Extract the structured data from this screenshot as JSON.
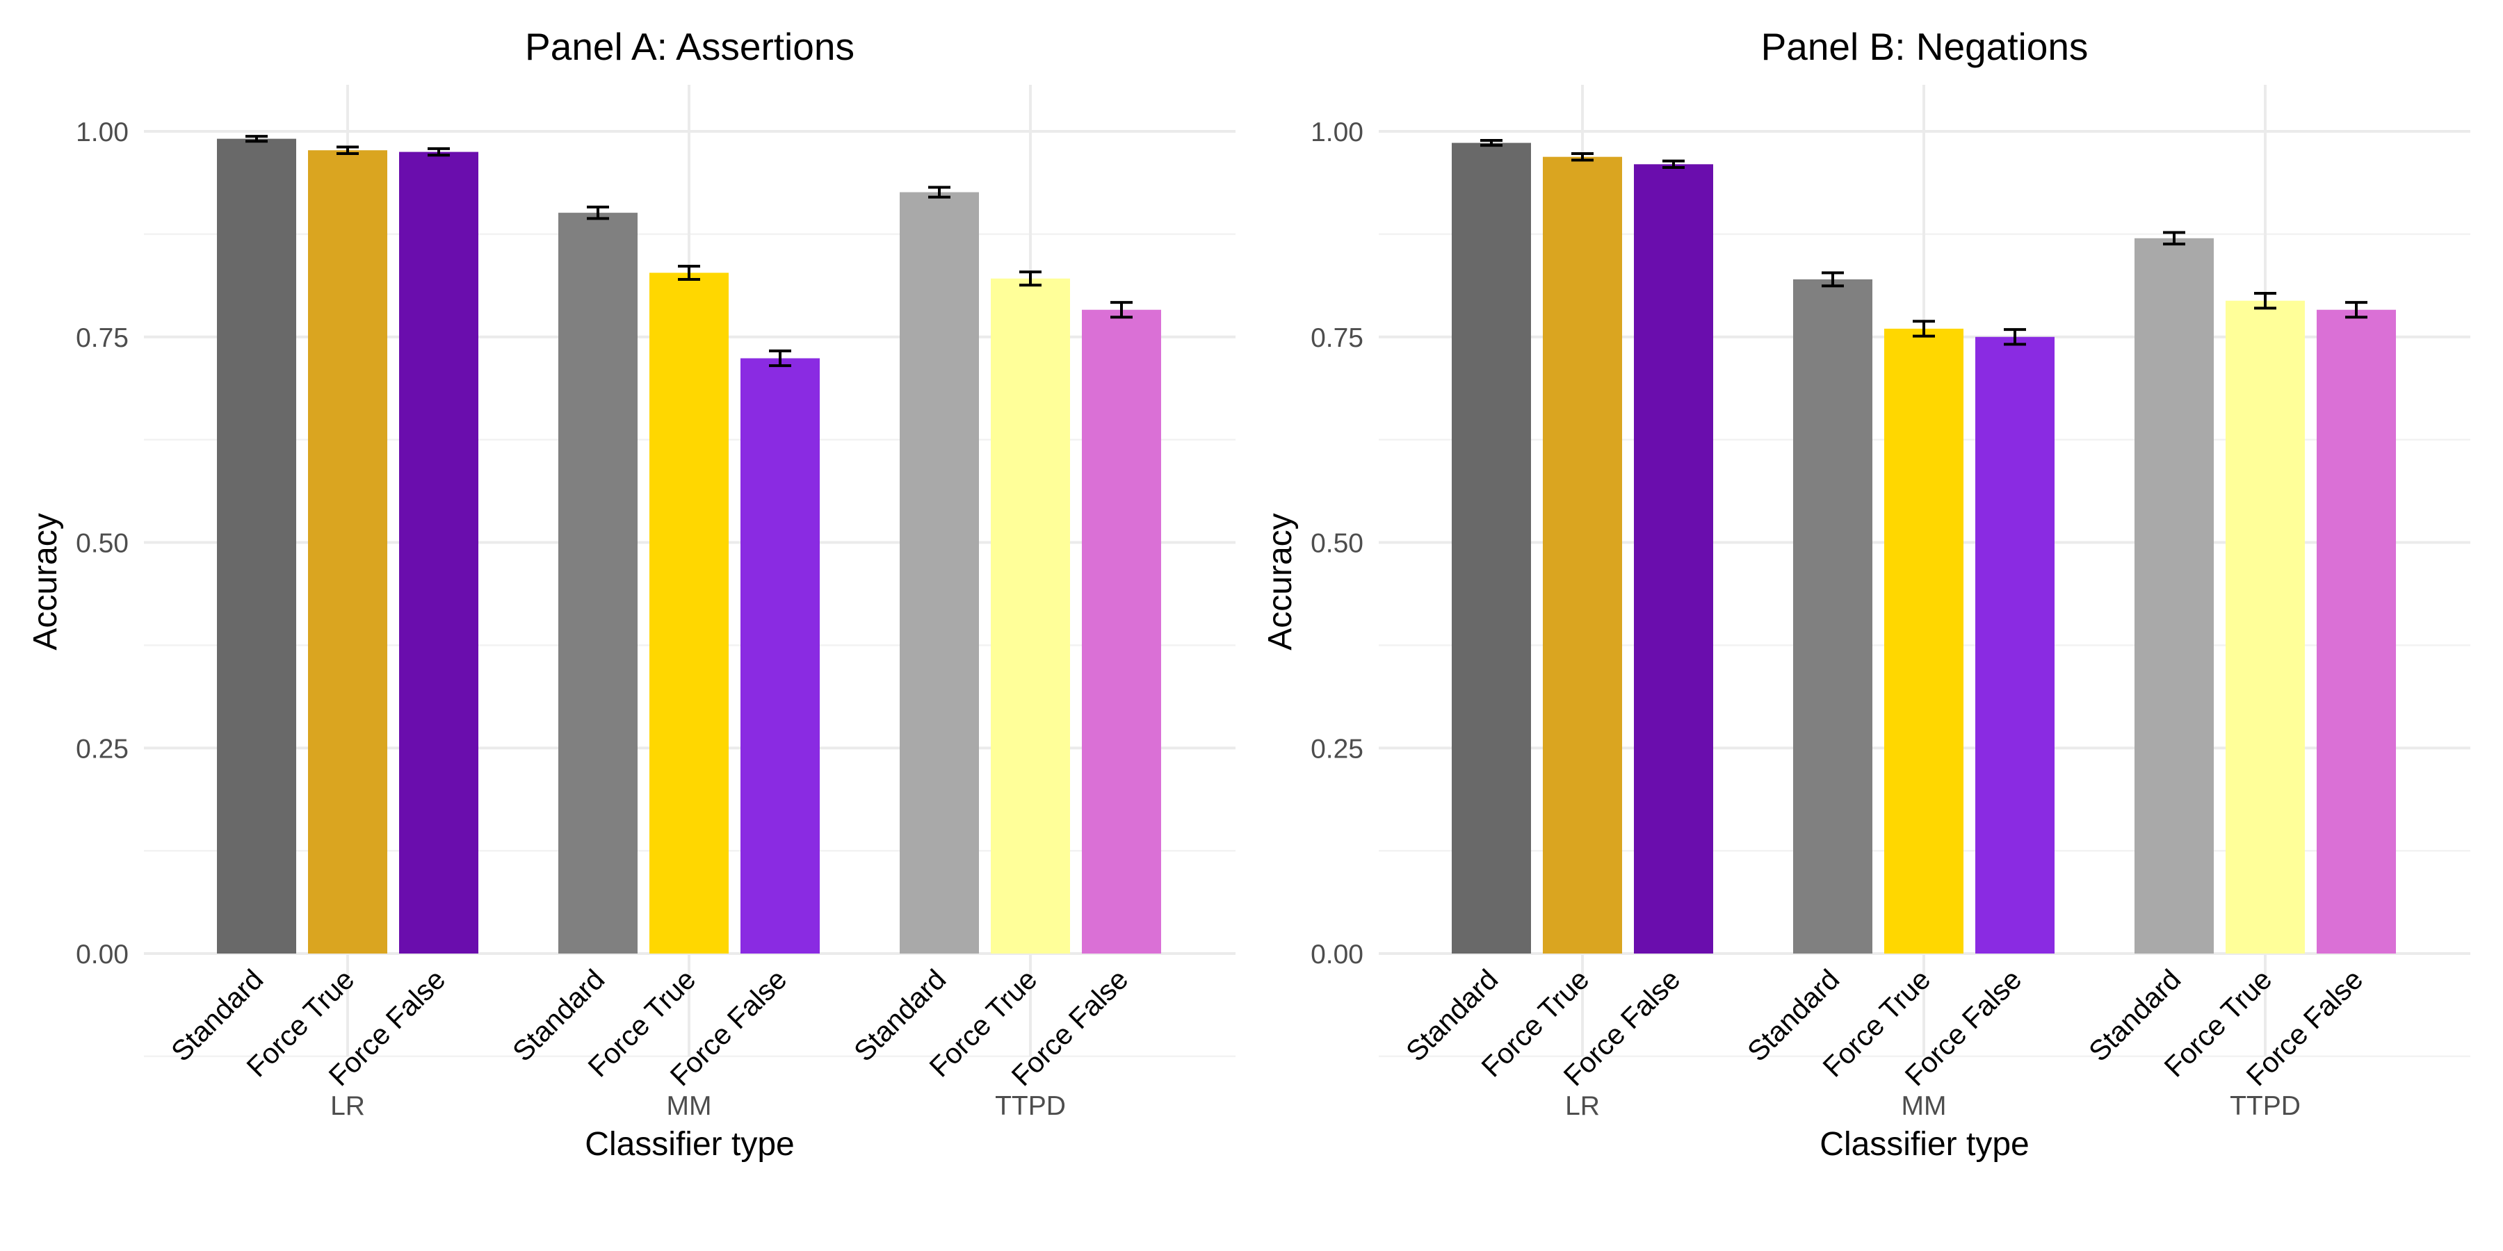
{
  "chart_data": [
    {
      "type": "bar",
      "title": "Panel A: Assertions",
      "xlabel": "Classifier type",
      "ylabel": "Accuracy",
      "ylim": [
        0,
        1.0
      ],
      "yticks": [
        "0.00",
        "0.25",
        "0.50",
        "0.75",
        "1.00"
      ],
      "groups": [
        "LR",
        "MM",
        "TTPD"
      ],
      "categories": [
        "Standard",
        "Force True",
        "Force False"
      ],
      "bars": [
        {
          "group": "LR",
          "label": "Standard",
          "value": 0.991,
          "err": 0.003,
          "color": "#696969"
        },
        {
          "group": "LR",
          "label": "Force True",
          "value": 0.977,
          "err": 0.004,
          "color": "#DAA520"
        },
        {
          "group": "LR",
          "label": "Force False",
          "value": 0.975,
          "err": 0.004,
          "color": "#6A0DAD"
        },
        {
          "group": "MM",
          "label": "Standard",
          "value": 0.901,
          "err": 0.007,
          "color": "#808080"
        },
        {
          "group": "MM",
          "label": "Force True",
          "value": 0.828,
          "err": 0.008,
          "color": "#FFD700"
        },
        {
          "group": "MM",
          "label": "Force False",
          "value": 0.724,
          "err": 0.009,
          "color": "#8A2BE2"
        },
        {
          "group": "TTPD",
          "label": "Standard",
          "value": 0.926,
          "err": 0.006,
          "color": "#A9A9A9"
        },
        {
          "group": "TTPD",
          "label": "Force True",
          "value": 0.821,
          "err": 0.008,
          "color": "#FFFF99"
        },
        {
          "group": "TTPD",
          "label": "Force False",
          "value": 0.783,
          "err": 0.009,
          "color": "#DA70D6"
        }
      ],
      "grid": true,
      "legend": "none"
    },
    {
      "type": "bar",
      "title": "Panel B: Negations",
      "xlabel": "Classifier type",
      "ylabel": "Accuracy",
      "ylim": [
        0,
        1.0
      ],
      "yticks": [
        "0.00",
        "0.25",
        "0.50",
        "0.75",
        "1.00"
      ],
      "groups": [
        "LR",
        "MM",
        "TTPD"
      ],
      "categories": [
        "Standard",
        "Force True",
        "Force False"
      ],
      "bars": [
        {
          "group": "LR",
          "label": "Standard",
          "value": 0.986,
          "err": 0.003,
          "color": "#696969"
        },
        {
          "group": "LR",
          "label": "Force True",
          "value": 0.969,
          "err": 0.004,
          "color": "#DAA520"
        },
        {
          "group": "LR",
          "label": "Force False",
          "value": 0.96,
          "err": 0.004,
          "color": "#6A0DAD"
        },
        {
          "group": "MM",
          "label": "Standard",
          "value": 0.82,
          "err": 0.008,
          "color": "#808080"
        },
        {
          "group": "MM",
          "label": "Force True",
          "value": 0.76,
          "err": 0.009,
          "color": "#FFD700"
        },
        {
          "group": "MM",
          "label": "Force False",
          "value": 0.75,
          "err": 0.009,
          "color": "#8A2BE2"
        },
        {
          "group": "TTPD",
          "label": "Standard",
          "value": 0.87,
          "err": 0.007,
          "color": "#A9A9A9"
        },
        {
          "group": "TTPD",
          "label": "Force True",
          "value": 0.794,
          "err": 0.009,
          "color": "#FFFF99"
        },
        {
          "group": "TTPD",
          "label": "Force False",
          "value": 0.783,
          "err": 0.009,
          "color": "#DA70D6"
        }
      ],
      "grid": true,
      "legend": "none"
    }
  ]
}
